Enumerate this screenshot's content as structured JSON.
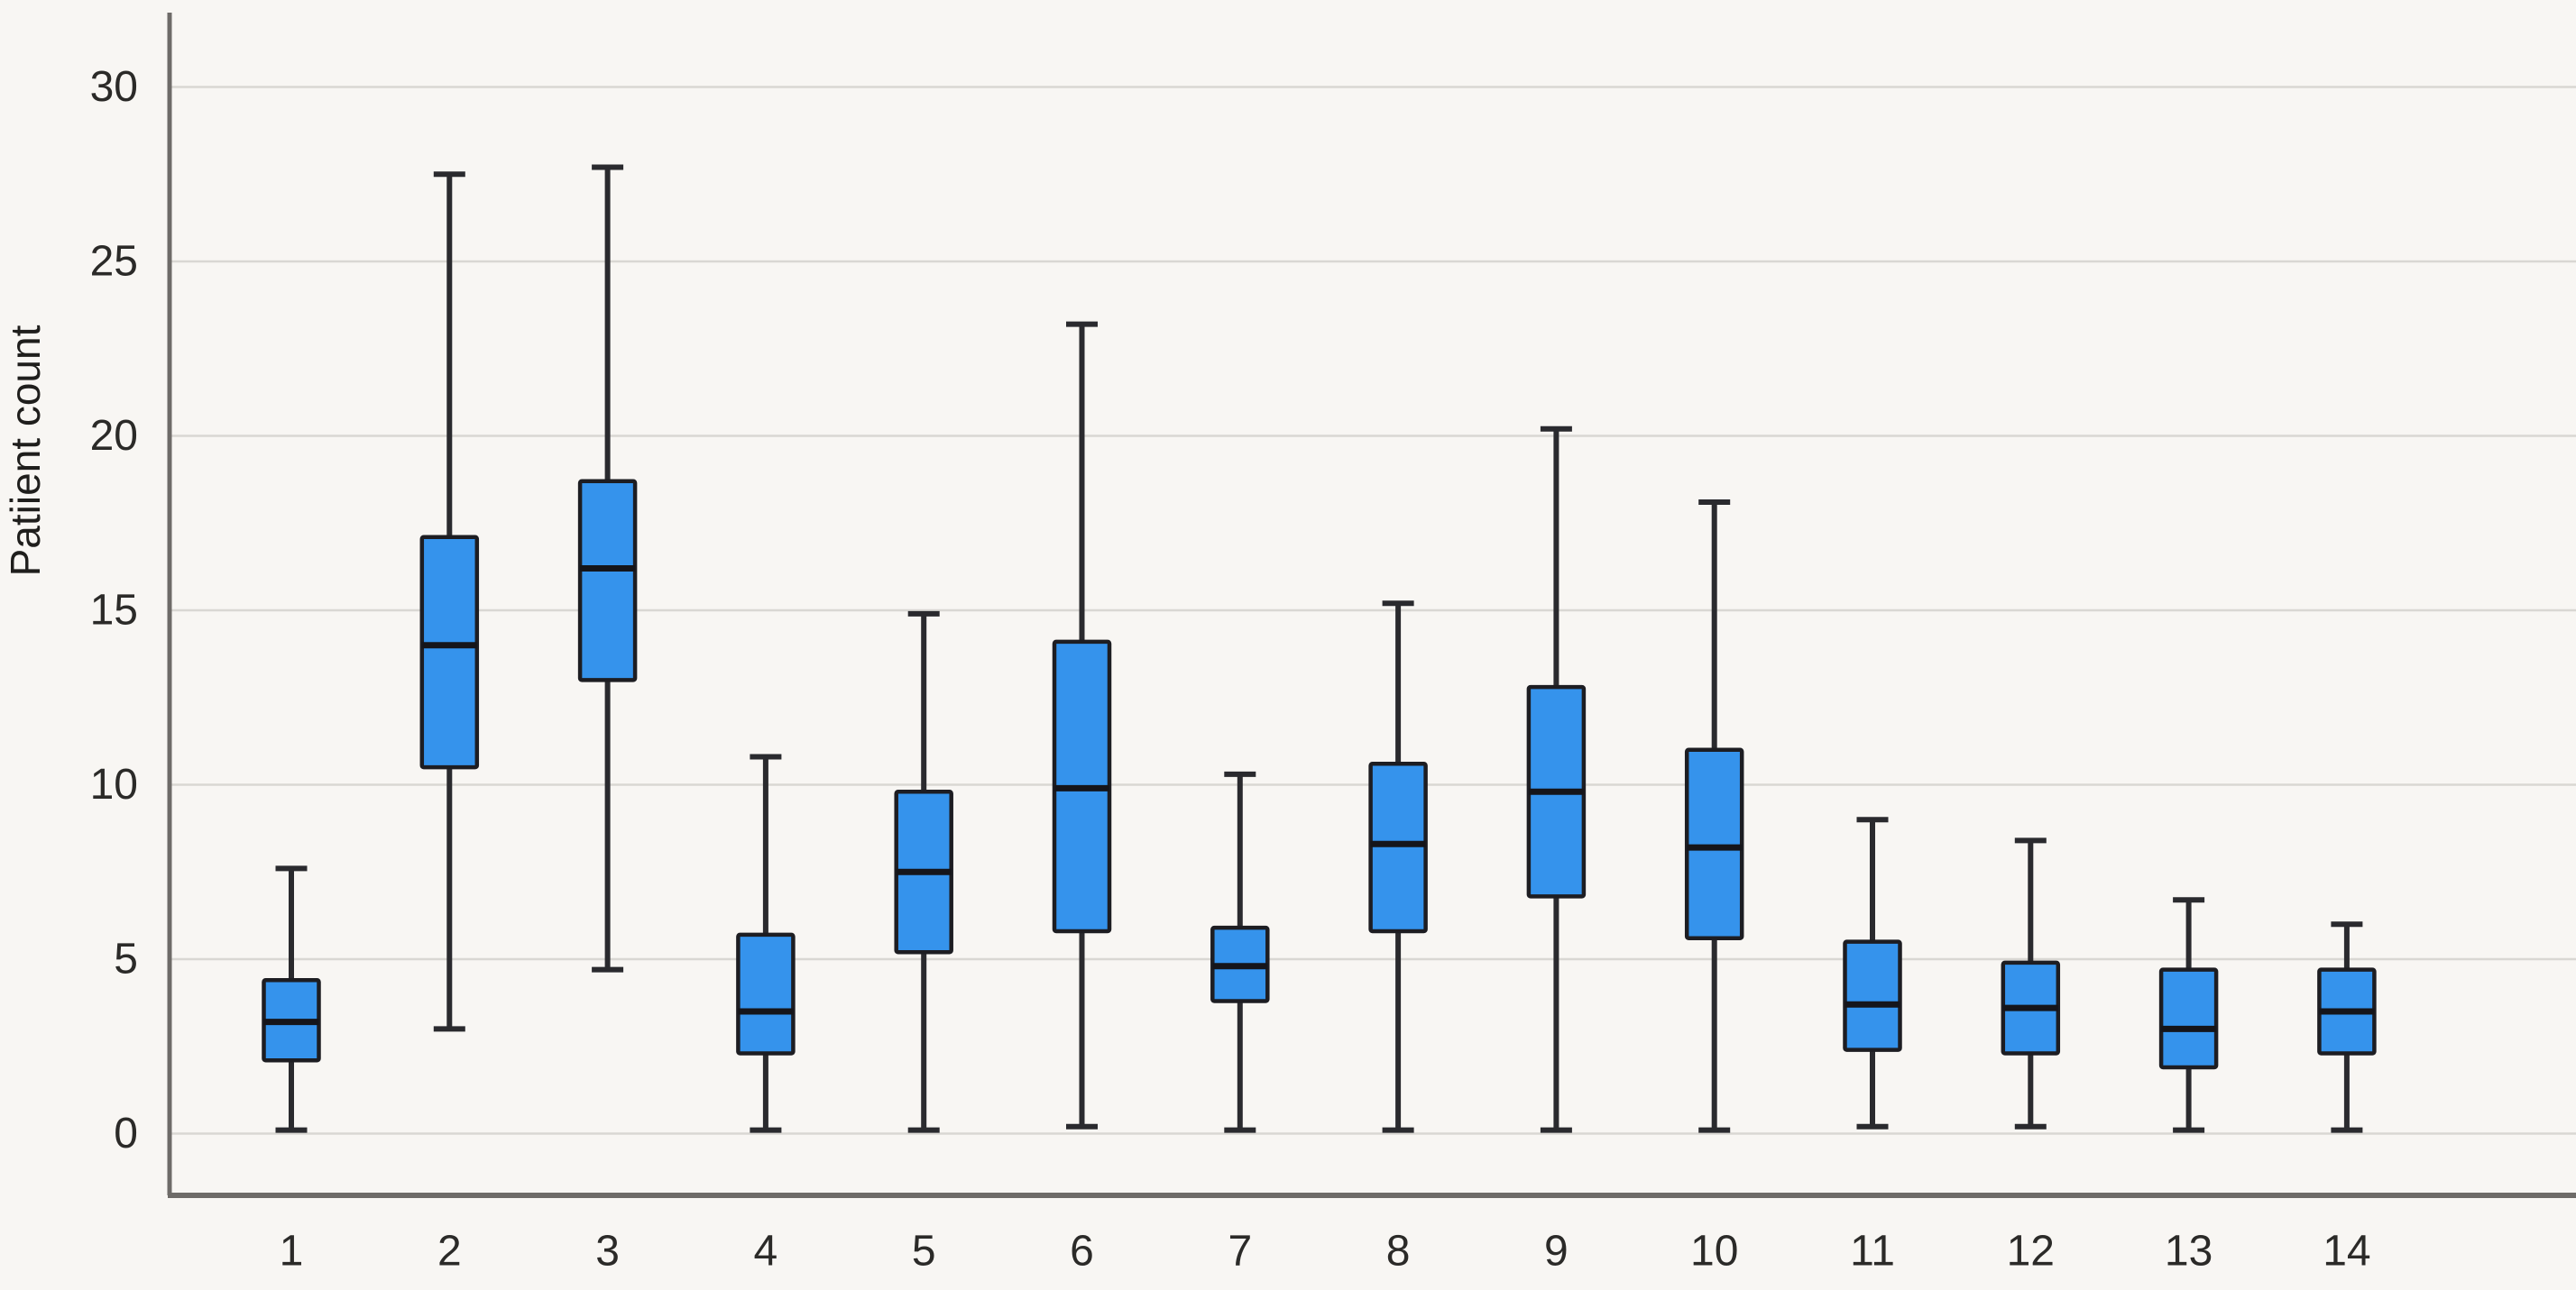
{
  "chart": {
    "background": "#f8f6f3",
    "grid_color": "#d9d7d3",
    "axis_color": "#6e6b68",
    "tick_text_color": "#2b2a28",
    "ylabel_color": "#1f1e1c",
    "box_fill": "#3593ec",
    "box_border": "#1d1d22",
    "median_color": "#15151a",
    "whisker_color": "#2a2a2e"
  },
  "chart_data": {
    "type": "boxplot",
    "title": "",
    "xlabel": "",
    "ylabel": "Patiient count",
    "categories": [
      "1",
      "2",
      "3",
      "4",
      "5",
      "6",
      "7",
      "8",
      "9",
      "10",
      "11",
      "12",
      "13",
      "14"
    ],
    "yticks": [
      0,
      5,
      10,
      15,
      20,
      25,
      30
    ],
    "ylim": [
      -1.8,
      32.5
    ],
    "grid": true,
    "legend": false,
    "boxes": [
      {
        "category": "1",
        "min": 0.1,
        "q1": 2.1,
        "median": 3.2,
        "q3": 4.4,
        "max": 7.6
      },
      {
        "category": "2",
        "min": 3.0,
        "q1": 10.5,
        "median": 14.0,
        "q3": 17.1,
        "max": 27.5
      },
      {
        "category": "3",
        "min": 4.7,
        "q1": 13.0,
        "median": 16.2,
        "q3": 18.7,
        "max": 27.7
      },
      {
        "category": "4",
        "min": 0.1,
        "q1": 2.3,
        "median": 3.5,
        "q3": 5.7,
        "max": 10.8
      },
      {
        "category": "5",
        "min": 0.1,
        "q1": 5.2,
        "median": 7.5,
        "q3": 9.8,
        "max": 14.9
      },
      {
        "category": "6",
        "min": 0.2,
        "q1": 5.8,
        "median": 9.9,
        "q3": 14.1,
        "max": 23.2
      },
      {
        "category": "7",
        "min": 0.1,
        "q1": 3.8,
        "median": 4.8,
        "q3": 5.9,
        "max": 10.3
      },
      {
        "category": "8",
        "min": 0.1,
        "q1": 5.8,
        "median": 8.3,
        "q3": 10.6,
        "max": 15.2
      },
      {
        "category": "9",
        "min": 0.1,
        "q1": 6.8,
        "median": 9.8,
        "q3": 12.8,
        "max": 20.2
      },
      {
        "category": "10",
        "min": 0.1,
        "q1": 5.6,
        "median": 8.2,
        "q3": 11.0,
        "max": 18.1
      },
      {
        "category": "11",
        "min": 0.2,
        "q1": 2.4,
        "median": 3.7,
        "q3": 5.5,
        "max": 9.0
      },
      {
        "category": "12",
        "min": 0.2,
        "q1": 2.3,
        "median": 3.6,
        "q3": 4.9,
        "max": 8.4
      },
      {
        "category": "13",
        "min": 0.1,
        "q1": 1.9,
        "median": 3.0,
        "q3": 4.7,
        "max": 6.7
      },
      {
        "category": "14",
        "min": 0.1,
        "q1": 2.3,
        "median": 3.5,
        "q3": 4.7,
        "max": 6.0
      }
    ]
  }
}
